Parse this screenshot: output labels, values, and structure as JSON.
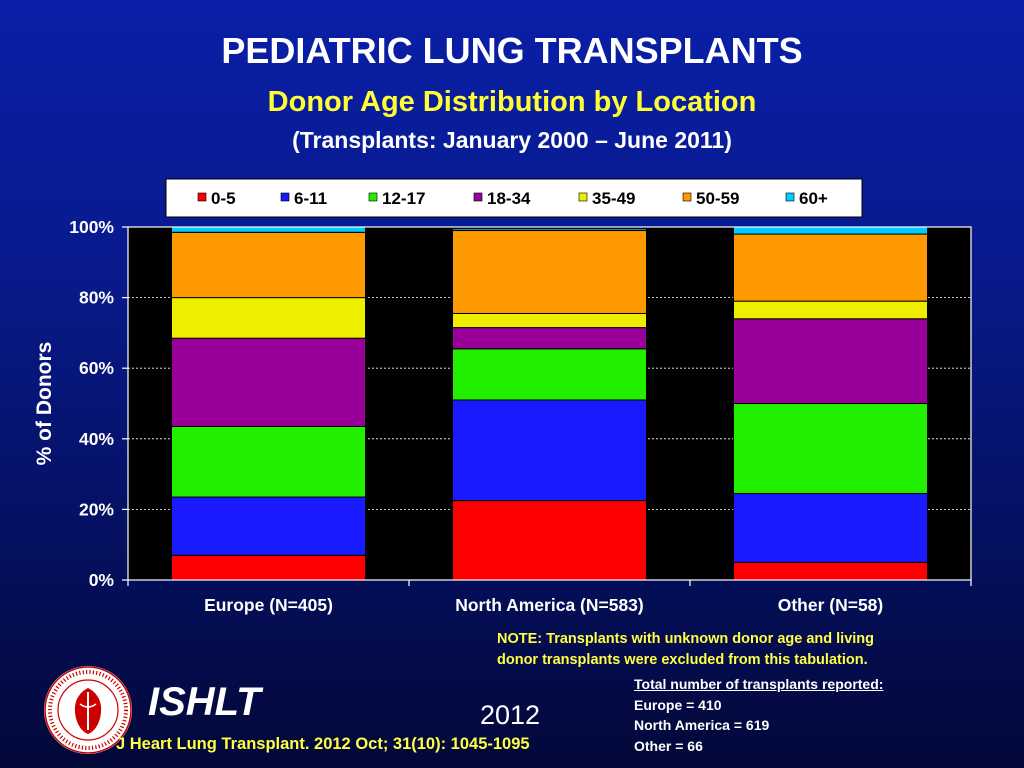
{
  "header": {
    "title": "PEDIATRIC LUNG TRANSPLANTS",
    "subtitle": "Donor Age Distribution by Location",
    "subtitle2": "(Transplants: January 2000 – June 2011)"
  },
  "chart_data": {
    "type": "bar",
    "stacked": true,
    "categories": [
      "Europe (N=405)",
      "North America (N=583)",
      "Other (N=58)"
    ],
    "series": [
      {
        "name": "0-5",
        "color": "#ff0000",
        "values": [
          7,
          22.5,
          5
        ]
      },
      {
        "name": "6-11",
        "color": "#1a1aff",
        "values": [
          16.5,
          28.5,
          19.5
        ]
      },
      {
        "name": "12-17",
        "color": "#22ee00",
        "values": [
          20,
          14.5,
          25.5
        ]
      },
      {
        "name": "18-34",
        "color": "#990099",
        "values": [
          25,
          6,
          24
        ]
      },
      {
        "name": "35-49",
        "color": "#eeee00",
        "values": [
          11.5,
          4,
          5
        ]
      },
      {
        "name": "50-59",
        "color": "#ff9900",
        "values": [
          18.5,
          23.5,
          19
        ]
      },
      {
        "name": "60+",
        "color": "#00ccff",
        "values": [
          1.5,
          0.5,
          2
        ]
      }
    ],
    "ylabel": "% of Donors",
    "yticks": [
      "0%",
      "20%",
      "40%",
      "60%",
      "80%",
      "100%"
    ],
    "ylim": [
      0,
      100
    ],
    "grid": true,
    "legend_position": "top"
  },
  "note": {
    "line1": "NOTE: Transplants with unknown donor age and living",
    "line2": "donor transplants were excluded from this tabulation."
  },
  "totals": {
    "header": "Total number of transplants reported:",
    "europe": "Europe = 410",
    "north_america": "North America = 619",
    "other": "Other = 66"
  },
  "footer": {
    "org": "ISHLT",
    "year": "2012",
    "citation": "J Heart Lung Transplant.  2012 Oct; 31(10): 1045-1095"
  }
}
